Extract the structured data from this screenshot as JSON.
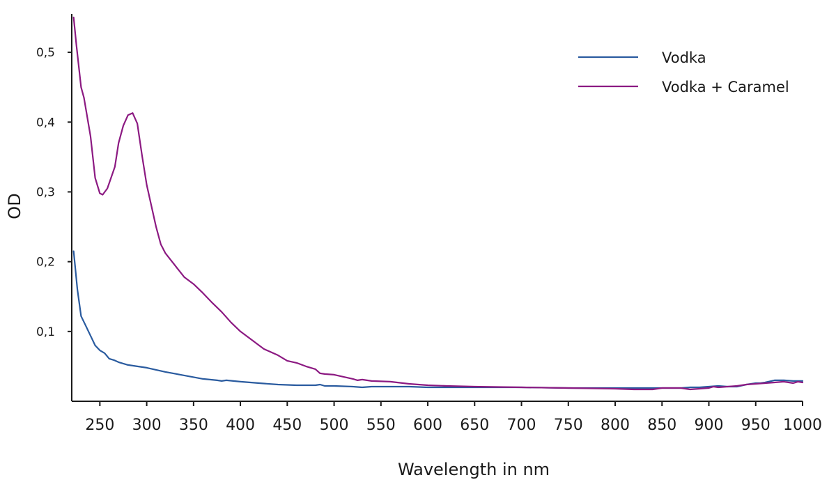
{
  "chart_data": {
    "type": "line",
    "xlabel": "Wavelength in nm",
    "ylabel": "OD",
    "xlim": [
      220,
      1000
    ],
    "ylim": [
      0.0,
      0.555
    ],
    "x_ticks": [
      250,
      300,
      350,
      400,
      450,
      500,
      550,
      600,
      650,
      700,
      750,
      800,
      850,
      900,
      950,
      1000
    ],
    "y_ticks": [
      0.1,
      0.2,
      0.3,
      0.4,
      0.5
    ],
    "y_tick_labels": [
      "0,1",
      "0,2",
      "0,3",
      "0,4",
      "0,5"
    ],
    "grid": false,
    "legend_position": "top-right",
    "series": [
      {
        "name": "Vodka",
        "color": "#2a5b9f",
        "points": [
          [
            222,
            0.215
          ],
          [
            226,
            0.16
          ],
          [
            230,
            0.122
          ],
          [
            235,
            0.108
          ],
          [
            240,
            0.094
          ],
          [
            245,
            0.08
          ],
          [
            250,
            0.073
          ],
          [
            255,
            0.069
          ],
          [
            260,
            0.061
          ],
          [
            265,
            0.059
          ],
          [
            270,
            0.056
          ],
          [
            280,
            0.052
          ],
          [
            290,
            0.05
          ],
          [
            300,
            0.048
          ],
          [
            310,
            0.045
          ],
          [
            320,
            0.042
          ],
          [
            340,
            0.037
          ],
          [
            360,
            0.032
          ],
          [
            375,
            0.03
          ],
          [
            380,
            0.029
          ],
          [
            385,
            0.03
          ],
          [
            400,
            0.028
          ],
          [
            420,
            0.026
          ],
          [
            440,
            0.024
          ],
          [
            460,
            0.023
          ],
          [
            480,
            0.023
          ],
          [
            485,
            0.024
          ],
          [
            490,
            0.022
          ],
          [
            500,
            0.022
          ],
          [
            520,
            0.021
          ],
          [
            530,
            0.02
          ],
          [
            540,
            0.021
          ],
          [
            560,
            0.021
          ],
          [
            580,
            0.021
          ],
          [
            600,
            0.02
          ],
          [
            620,
            0.02
          ],
          [
            650,
            0.02
          ],
          [
            700,
            0.02
          ],
          [
            750,
            0.019
          ],
          [
            800,
            0.019
          ],
          [
            850,
            0.019
          ],
          [
            870,
            0.019
          ],
          [
            880,
            0.02
          ],
          [
            890,
            0.02
          ],
          [
            900,
            0.021
          ],
          [
            910,
            0.022
          ],
          [
            920,
            0.021
          ],
          [
            930,
            0.021
          ],
          [
            940,
            0.024
          ],
          [
            950,
            0.026
          ],
          [
            955,
            0.026
          ],
          [
            960,
            0.027
          ],
          [
            970,
            0.03
          ],
          [
            980,
            0.03
          ],
          [
            990,
            0.029
          ],
          [
            1000,
            0.029
          ]
        ]
      },
      {
        "name": "Vodka + Caramel",
        "color": "#8c1a82",
        "points": [
          [
            222,
            0.55
          ],
          [
            225,
            0.51
          ],
          [
            230,
            0.45
          ],
          [
            233,
            0.435
          ],
          [
            240,
            0.38
          ],
          [
            245,
            0.32
          ],
          [
            250,
            0.298
          ],
          [
            253,
            0.296
          ],
          [
            258,
            0.305
          ],
          [
            266,
            0.336
          ],
          [
            270,
            0.37
          ],
          [
            275,
            0.395
          ],
          [
            280,
            0.41
          ],
          [
            285,
            0.413
          ],
          [
            290,
            0.398
          ],
          [
            295,
            0.352
          ],
          [
            300,
            0.31
          ],
          [
            305,
            0.28
          ],
          [
            310,
            0.25
          ],
          [
            315,
            0.225
          ],
          [
            320,
            0.212
          ],
          [
            330,
            0.195
          ],
          [
            340,
            0.178
          ],
          [
            350,
            0.168
          ],
          [
            360,
            0.155
          ],
          [
            370,
            0.141
          ],
          [
            380,
            0.128
          ],
          [
            390,
            0.113
          ],
          [
            400,
            0.1
          ],
          [
            410,
            0.09
          ],
          [
            420,
            0.08
          ],
          [
            425,
            0.075
          ],
          [
            430,
            0.072
          ],
          [
            440,
            0.066
          ],
          [
            450,
            0.058
          ],
          [
            460,
            0.055
          ],
          [
            470,
            0.05
          ],
          [
            480,
            0.046
          ],
          [
            485,
            0.04
          ],
          [
            490,
            0.039
          ],
          [
            500,
            0.038
          ],
          [
            510,
            0.035
          ],
          [
            520,
            0.032
          ],
          [
            525,
            0.03
          ],
          [
            530,
            0.031
          ],
          [
            540,
            0.029
          ],
          [
            560,
            0.028
          ],
          [
            580,
            0.025
          ],
          [
            600,
            0.023
          ],
          [
            620,
            0.022
          ],
          [
            650,
            0.021
          ],
          [
            700,
            0.02
          ],
          [
            750,
            0.019
          ],
          [
            800,
            0.018
          ],
          [
            820,
            0.017
          ],
          [
            840,
            0.017
          ],
          [
            850,
            0.019
          ],
          [
            870,
            0.019
          ],
          [
            875,
            0.018
          ],
          [
            880,
            0.017
          ],
          [
            890,
            0.018
          ],
          [
            900,
            0.019
          ],
          [
            905,
            0.021
          ],
          [
            910,
            0.02
          ],
          [
            920,
            0.021
          ],
          [
            930,
            0.022
          ],
          [
            940,
            0.024
          ],
          [
            950,
            0.025
          ],
          [
            960,
            0.026
          ],
          [
            970,
            0.027
          ],
          [
            980,
            0.028
          ],
          [
            990,
            0.026
          ],
          [
            995,
            0.028
          ],
          [
            1000,
            0.027
          ]
        ]
      }
    ]
  }
}
